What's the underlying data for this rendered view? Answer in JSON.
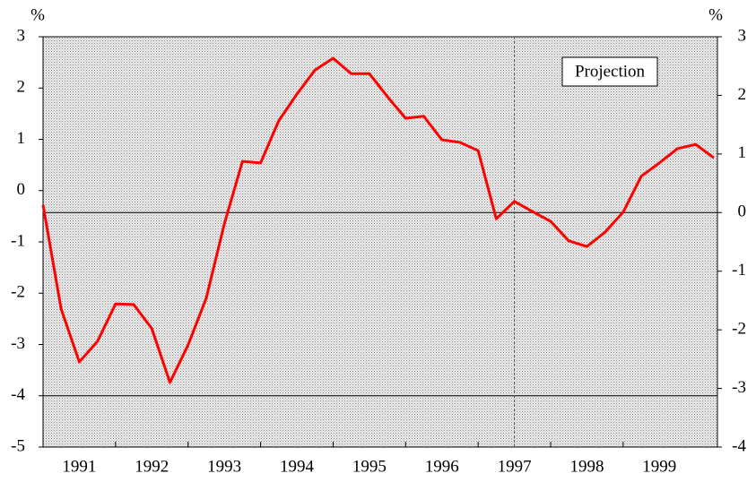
{
  "chart_data": {
    "type": "line",
    "y_unit_label": "%",
    "y2_unit_label": "%",
    "annotation": "Projection",
    "x": [
      1991,
      1991.25,
      1991.5,
      1991.75,
      1992,
      1992.25,
      1992.5,
      1992.75,
      1993,
      1993.25,
      1993.5,
      1993.75,
      1994,
      1994.25,
      1994.5,
      1994.75,
      1995,
      1995.25,
      1995.5,
      1995.75,
      1996,
      1996.25,
      1996.5,
      1996.75,
      1997,
      1997.25,
      1997.5,
      1997.75,
      1998,
      1998.25,
      1998.5,
      1998.75,
      1999,
      1999.25,
      1999.5,
      1999.75,
      2000,
      2000.25
    ],
    "series": [
      {
        "color": "#ff0000",
        "values": [
          -0.28,
          -2.31,
          -3.34,
          -2.94,
          -2.21,
          -2.22,
          -2.69,
          -3.74,
          -3.01,
          -2.1,
          -0.65,
          0.57,
          0.54,
          1.36,
          1.88,
          2.35,
          2.58,
          2.28,
          2.28,
          1.83,
          1.41,
          1.45,
          0.99,
          0.94,
          0.78,
          -0.55,
          -0.21,
          -0.41,
          -0.6,
          -0.98,
          -1.09,
          -0.81,
          -0.42,
          0.28,
          0.54,
          0.82,
          0.9,
          0.64
        ]
      }
    ],
    "xlim": [
      1991,
      2000.3
    ],
    "xticks": [
      {
        "value": 1991.5,
        "label": "1991"
      },
      {
        "value": 1992.5,
        "label": "1992"
      },
      {
        "value": 1993.5,
        "label": "1993"
      },
      {
        "value": 1994.5,
        "label": "1994"
      },
      {
        "value": 1995.5,
        "label": "1995"
      },
      {
        "value": 1996.5,
        "label": "1996"
      },
      {
        "value": 1997.5,
        "label": "1997"
      },
      {
        "value": 1998.5,
        "label": "1998"
      },
      {
        "value": 1999.5,
        "label": "1999"
      }
    ],
    "x_tick_marks": [
      1992,
      1993,
      1994,
      1995,
      1996,
      1997,
      1998,
      1999
    ],
    "ylim": [
      -5,
      3
    ],
    "yticks": [
      -5,
      -4,
      -3,
      -2,
      -1,
      0,
      1,
      2,
      3
    ],
    "y2lim": [
      -4,
      3
    ],
    "y2ticks": [
      -4,
      -3,
      -2,
      -1,
      0,
      1,
      2,
      3
    ],
    "projection_start": 1997.5,
    "reference_lines": [
      {
        "axis": "y",
        "value": -4
      },
      {
        "axis": "y2",
        "value": 0
      }
    ]
  }
}
